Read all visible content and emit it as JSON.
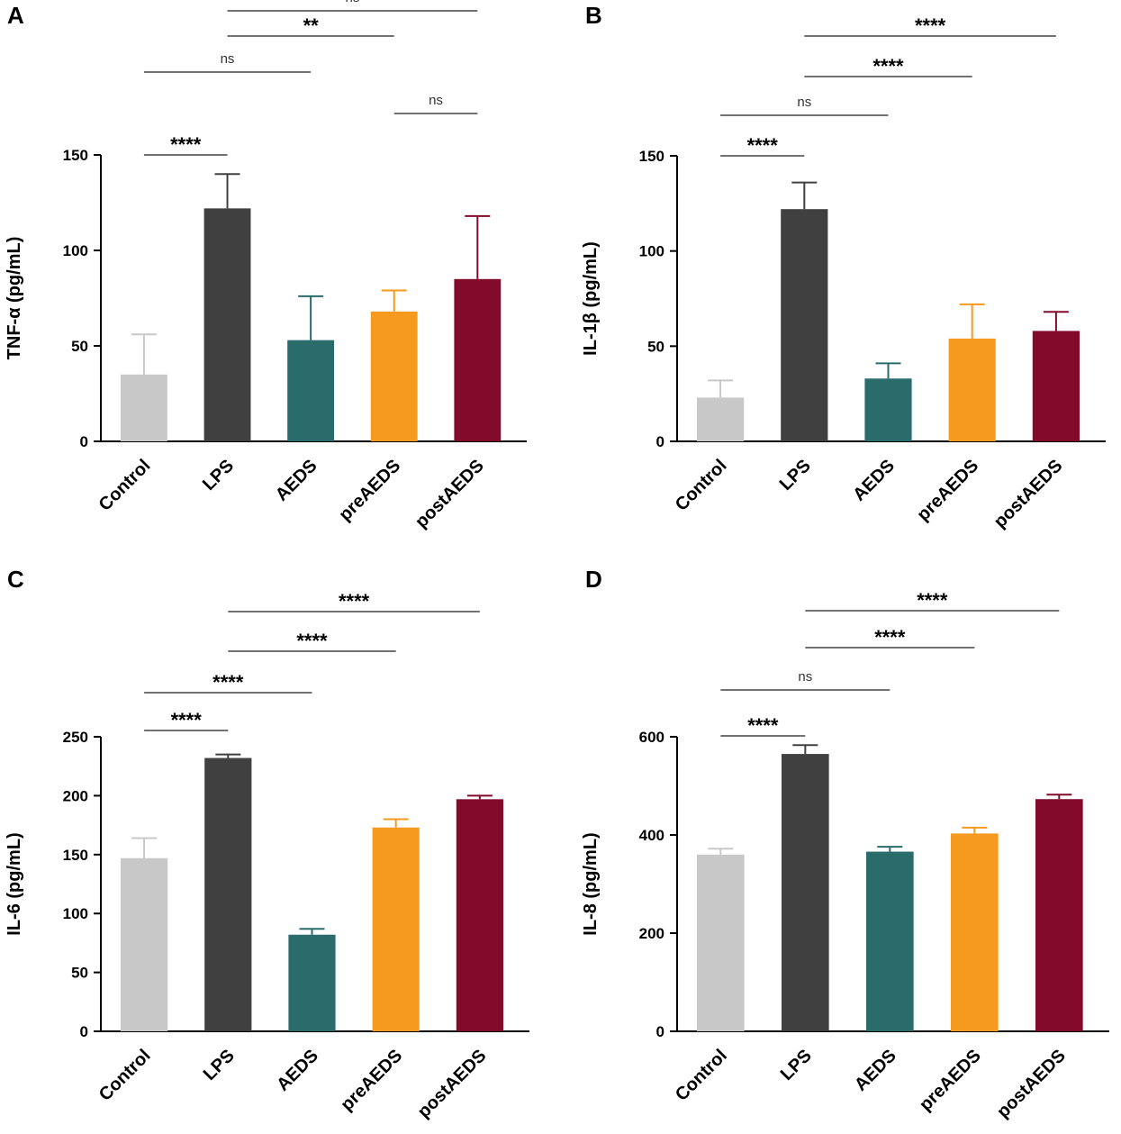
{
  "chart_data": [
    {
      "panel": "A",
      "type": "bar",
      "ylabel": "TNF-α (pg/mL)",
      "ylim": [
        0,
        150
      ],
      "yticks": [
        0,
        50,
        100,
        150
      ],
      "categories": [
        "Control",
        "LPS",
        "AEDS",
        "preAEDS",
        "postAEDS"
      ],
      "values": [
        35,
        122,
        53,
        68,
        85
      ],
      "errors": [
        21,
        18,
        23,
        11,
        33
      ],
      "colors": [
        "#c8c8c8",
        "#404040",
        "#2a6b6b",
        "#f59a1f",
        "#820b2c"
      ],
      "comparisons": [
        {
          "from": 0,
          "to": 1,
          "label": "****"
        },
        {
          "from": 3,
          "to": 4,
          "label": "ns"
        },
        {
          "from": 0,
          "to": 2,
          "label": "ns"
        },
        {
          "from": 1,
          "to": 3,
          "label": "**"
        },
        {
          "from": 1,
          "to": 4,
          "label": "ns"
        }
      ]
    },
    {
      "panel": "B",
      "type": "bar",
      "ylabel": "IL-1β (pg/mL)",
      "ylim": [
        0,
        150
      ],
      "yticks": [
        0,
        50,
        100,
        150
      ],
      "categories": [
        "Control",
        "LPS",
        "AEDS",
        "preAEDS",
        "postAEDS"
      ],
      "values": [
        23,
        122,
        33,
        54,
        58
      ],
      "errors": [
        9,
        14,
        8,
        18,
        10
      ],
      "colors": [
        "#c8c8c8",
        "#404040",
        "#2a6b6b",
        "#f59a1f",
        "#820b2c"
      ],
      "comparisons": [
        {
          "from": 0,
          "to": 1,
          "label": "****"
        },
        {
          "from": 0,
          "to": 2,
          "label": "ns"
        },
        {
          "from": 1,
          "to": 3,
          "label": "****"
        },
        {
          "from": 1,
          "to": 4,
          "label": "****"
        }
      ]
    },
    {
      "panel": "C",
      "type": "bar",
      "ylabel": "IL-6 (pg/mL)",
      "ylim": [
        0,
        250
      ],
      "yticks": [
        0,
        50,
        100,
        150,
        200,
        250
      ],
      "categories": [
        "Control",
        "LPS",
        "AEDS",
        "preAEDS",
        "postAEDS"
      ],
      "values": [
        147,
        232,
        82,
        173,
        197
      ],
      "errors": [
        17,
        3,
        5,
        7,
        3
      ],
      "colors": [
        "#c8c8c8",
        "#404040",
        "#2a6b6b",
        "#f59a1f",
        "#820b2c"
      ],
      "comparisons": [
        {
          "from": 0,
          "to": 1,
          "label": "****"
        },
        {
          "from": 0,
          "to": 2,
          "label": "****"
        },
        {
          "from": 1,
          "to": 3,
          "label": "****"
        },
        {
          "from": 1,
          "to": 4,
          "label": "****"
        }
      ]
    },
    {
      "panel": "D",
      "type": "bar",
      "ylabel": "IL-8 (pg/mL)",
      "ylim": [
        0,
        600
      ],
      "yticks": [
        0,
        200,
        400,
        600
      ],
      "categories": [
        "Control",
        "LPS",
        "AEDS",
        "preAEDS",
        "postAEDS"
      ],
      "values": [
        360,
        565,
        366,
        403,
        473
      ],
      "errors": [
        12,
        18,
        10,
        12,
        9
      ],
      "colors": [
        "#c8c8c8",
        "#404040",
        "#2a6b6b",
        "#f59a1f",
        "#820b2c"
      ],
      "comparisons": [
        {
          "from": 0,
          "to": 1,
          "label": "****"
        },
        {
          "from": 0,
          "to": 2,
          "label": "ns"
        },
        {
          "from": 1,
          "to": 3,
          "label": "****"
        },
        {
          "from": 1,
          "to": 4,
          "label": "****"
        }
      ]
    }
  ]
}
